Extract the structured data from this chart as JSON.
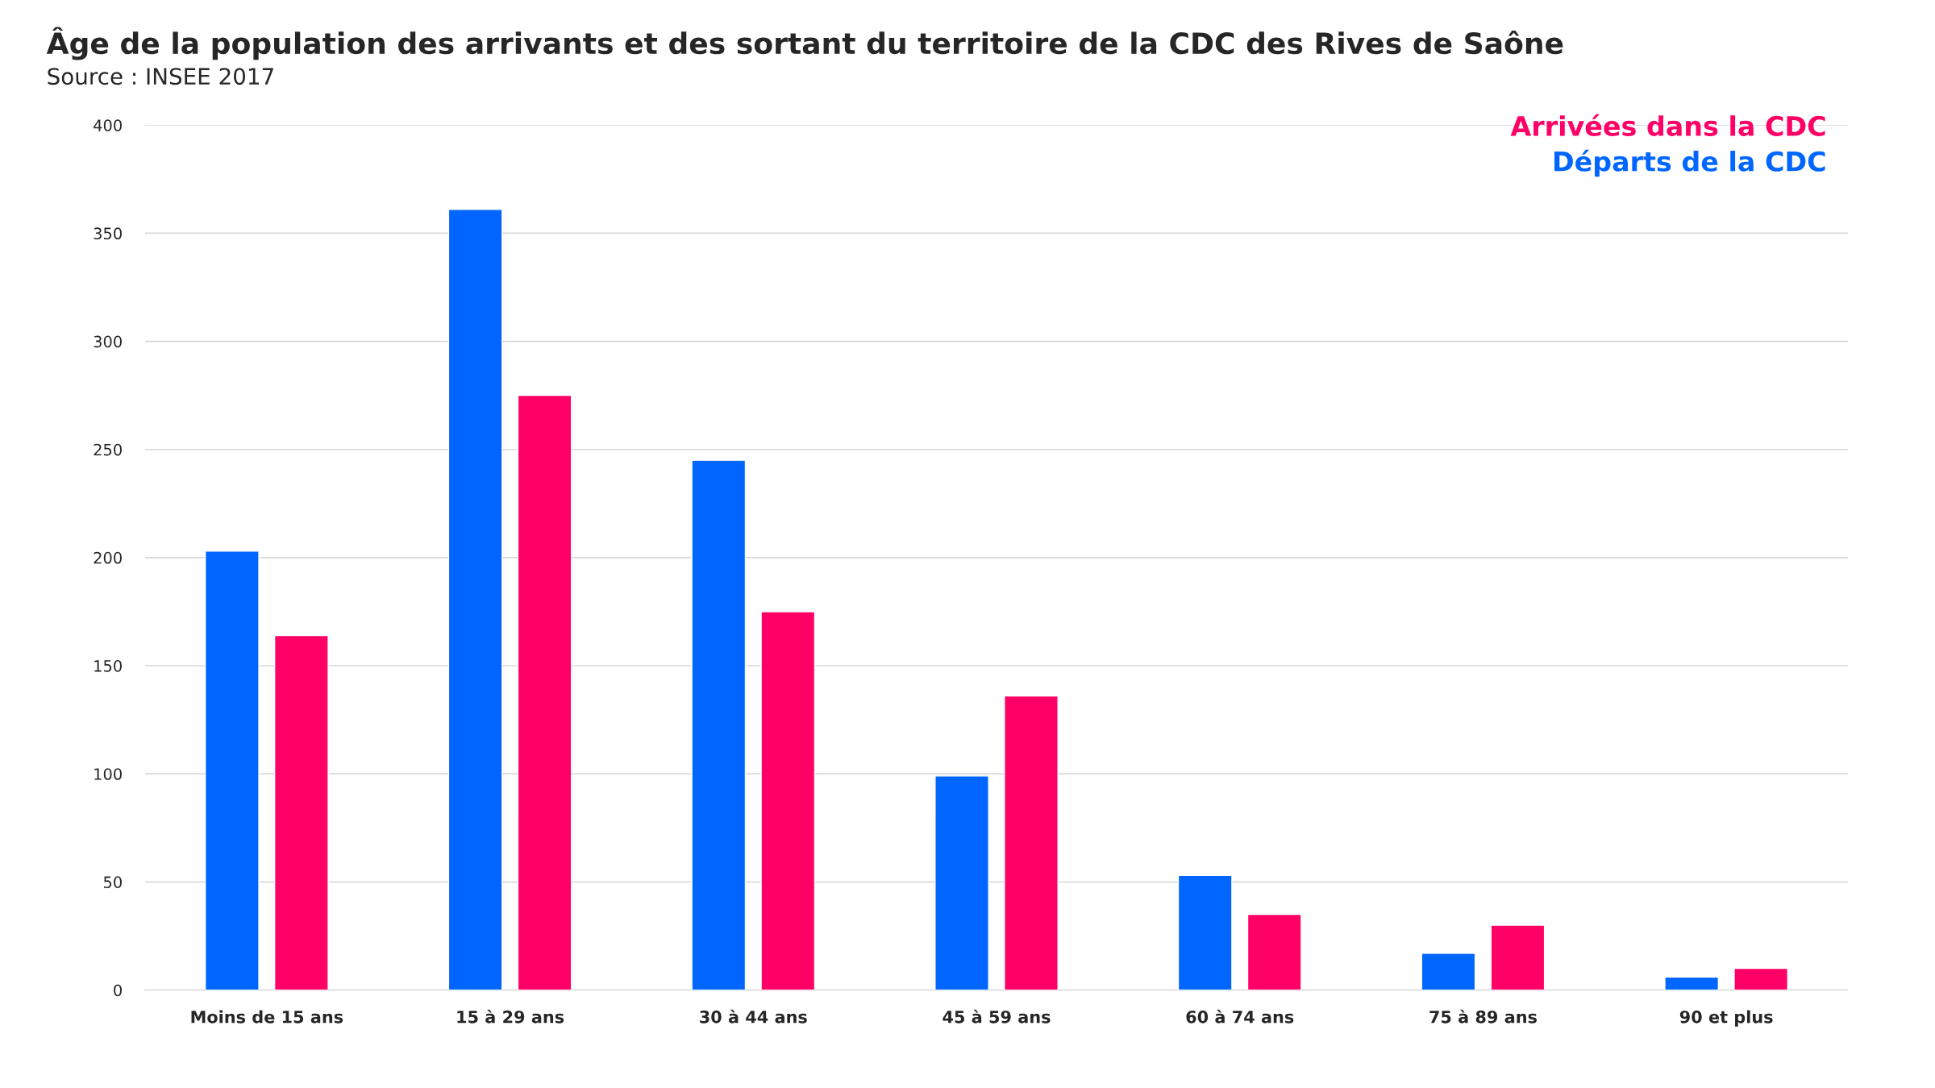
{
  "chart_data": {
    "type": "bar",
    "title": "Âge de la population des arrivants et des sortant du territoire de la CDC des Rives de Saône",
    "annotations": [
      "Source : INSEE 2017"
    ],
    "categories": [
      "Moins de 15 ans",
      "15 à 29 ans",
      "30 à 44 ans",
      "45 à 59 ans",
      "60 à 74 ans",
      "75 à 89 ans",
      "90 et plus"
    ],
    "series": [
      {
        "name": "Départs de la CDC",
        "color": "#0066ff",
        "values": [
          203,
          361,
          245,
          99,
          53,
          17,
          6
        ]
      },
      {
        "name": "Arrivées dans la CDC",
        "color": "#ff0066",
        "values": [
          164,
          275,
          175,
          136,
          35,
          30,
          10
        ]
      }
    ],
    "ylim": [
      0,
      400
    ],
    "yticks": [
      0,
      50,
      100,
      150,
      200,
      250,
      300,
      350,
      400
    ],
    "grid": "y",
    "legend": "top right"
  }
}
